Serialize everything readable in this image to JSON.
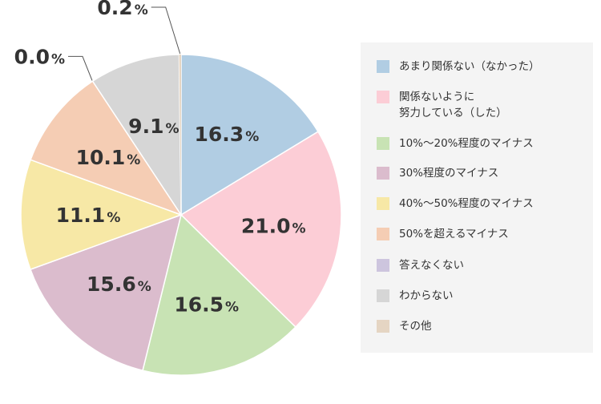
{
  "chart_data": {
    "type": "pie",
    "start_angle": "12 o'clock",
    "direction": "clockwise",
    "slices": [
      {
        "label": "あまり関係ない（なかった）",
        "value": 16.3,
        "display": "16.3",
        "color": "#b1cde3"
      },
      {
        "label": "関係ないように\n努力している（した）",
        "value": 21.0,
        "display": "21.0",
        "color": "#fccdd6"
      },
      {
        "label": "10%〜20%程度のマイナス",
        "value": 16.5,
        "display": "16.5",
        "color": "#c8e3b4"
      },
      {
        "label": "30%程度のマイナス",
        "value": 15.6,
        "display": "15.6",
        "color": "#dbbccd"
      },
      {
        "label": "40%〜50%程度のマイナス",
        "value": 11.1,
        "display": "11.1",
        "color": "#f7e8a6"
      },
      {
        "label": "50%を超えるマイナス",
        "value": 10.1,
        "display": "10.1",
        "color": "#f5cdb4"
      },
      {
        "label": "答えなくない",
        "value": 0.0,
        "display": "0.0",
        "color": "#cdc5de"
      },
      {
        "label": "わからない",
        "value": 9.1,
        "display": "9.1",
        "color": "#d6d6d6"
      },
      {
        "label": "その他",
        "value": 0.2,
        "display": "0.2",
        "color": "#e5d5c3"
      }
    ],
    "unit": "%",
    "legend_position": "right"
  }
}
